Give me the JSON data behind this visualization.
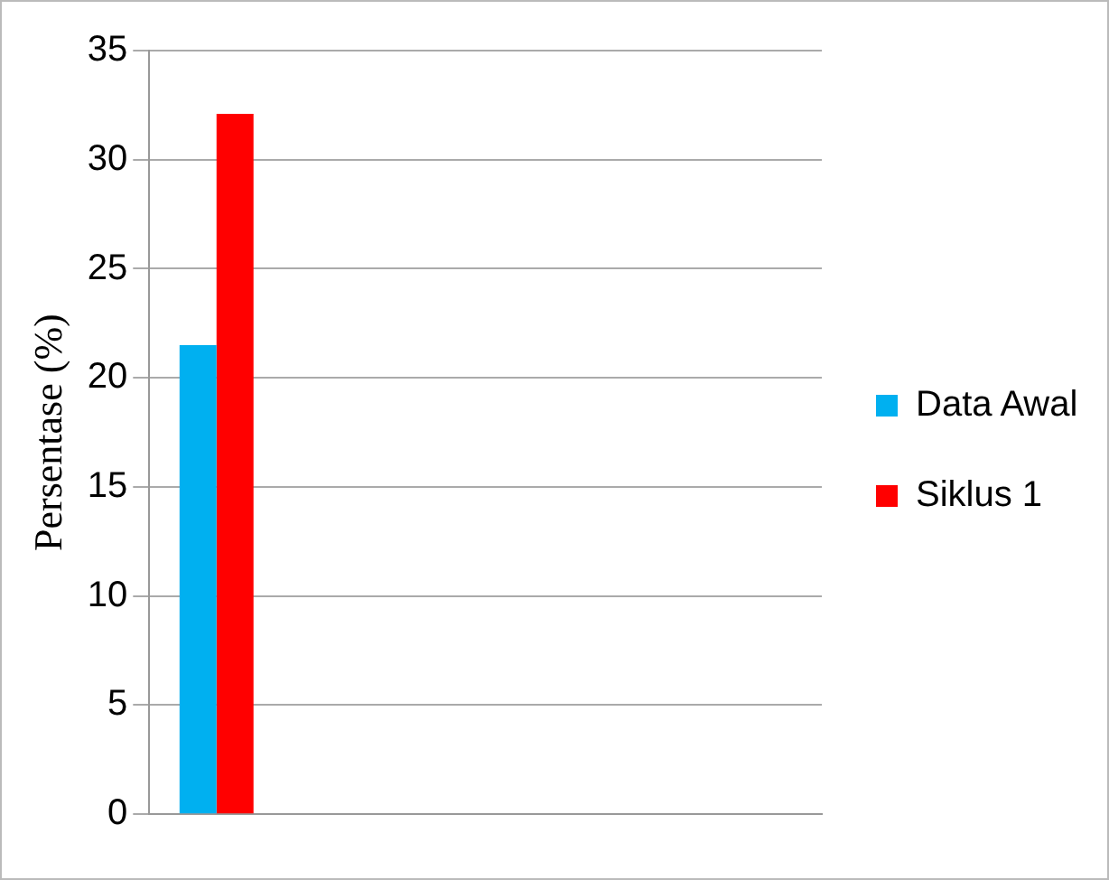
{
  "chart_data": {
    "type": "bar",
    "ylabel": "Persentase (%)",
    "categories": [
      null,
      null,
      null,
      null,
      null
    ],
    "series": [
      {
        "name": "Data Awal",
        "color": "#00b0f0",
        "values": [
          21.5,
          null,
          null,
          null,
          null
        ]
      },
      {
        "name": "Siklus 1",
        "color": "#ff0000",
        "values": [
          32.1,
          null,
          null,
          null,
          null
        ]
      }
    ],
    "ylim": [
      0,
      35
    ],
    "yticks": [
      0,
      5,
      10,
      15,
      20,
      25,
      30,
      35
    ],
    "grid": "y",
    "legend": "right"
  }
}
